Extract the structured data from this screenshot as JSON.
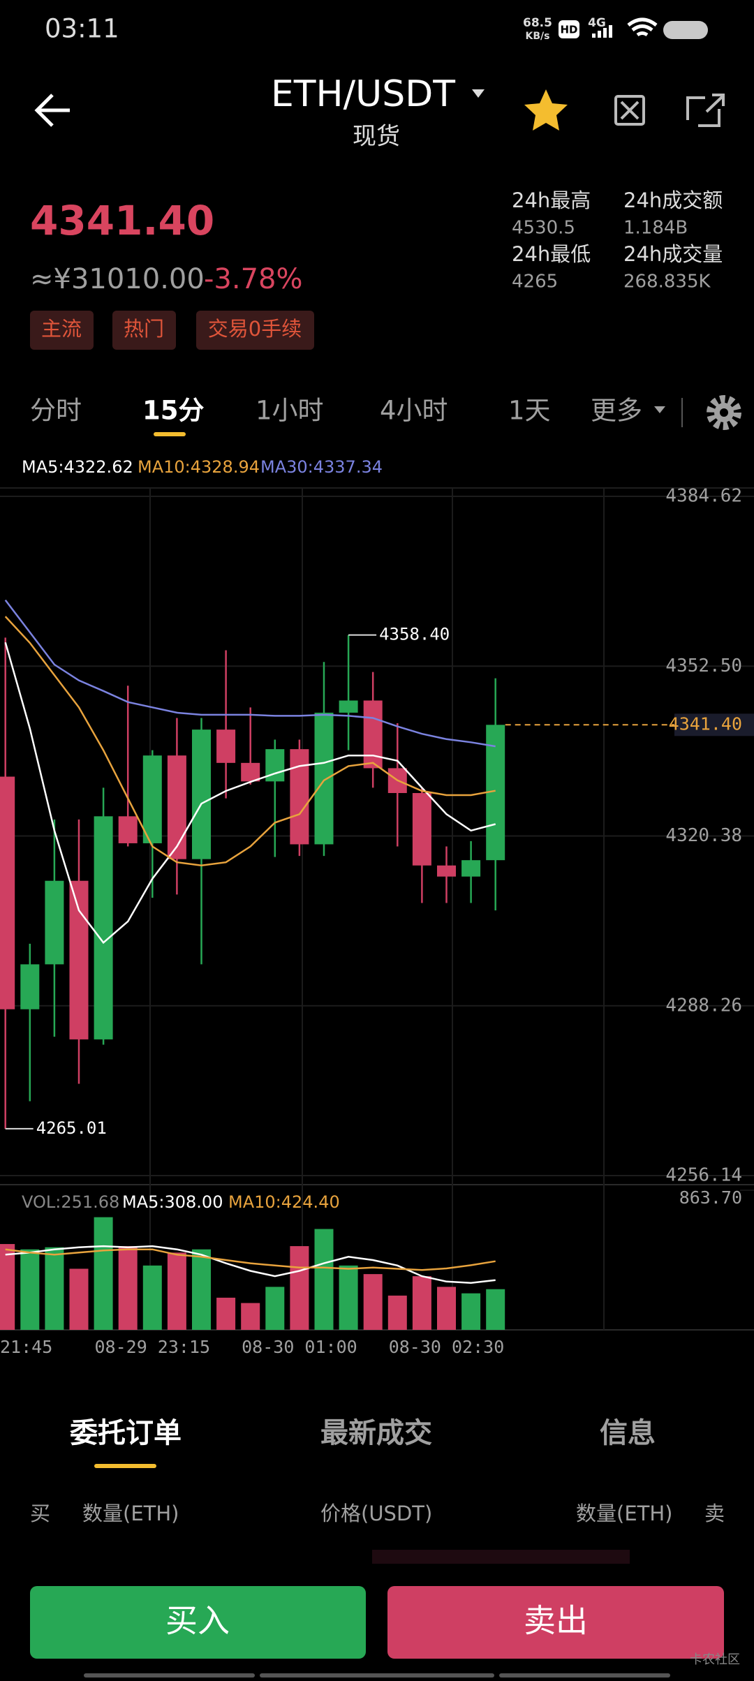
{
  "status_bar": {
    "time": "03:11",
    "speed": "68.5",
    "speed_unit": "KB/s",
    "hd": "HD",
    "network": "4G"
  },
  "header": {
    "pair": "ETH/USDT",
    "market": "现货"
  },
  "ticker": {
    "price": "4341.40",
    "cny": "≈¥31010.00",
    "change": "-3.78%",
    "tags": [
      "主流",
      "热门",
      "交易0手续"
    ],
    "stats": [
      {
        "label": "24h最高",
        "value": "4530.5"
      },
      {
        "label": "24h最低",
        "value": "4265"
      },
      {
        "label": "24h成交额",
        "value": "1.184B"
      },
      {
        "label": "24h成交量",
        "value": "268.835K"
      }
    ]
  },
  "intervals": [
    "分时",
    "15分",
    "1小时",
    "4小时",
    "1天",
    "更多"
  ],
  "chart_data": [
    {
      "type": "candlestick",
      "up_color": "#27a855",
      "down_color": "#cf3f63",
      "open": [
        4331.6,
        4287.6,
        4296.1,
        4311.9,
        4281.9,
        4324.1,
        4319.0,
        4335.6,
        4316.0,
        4340.5,
        4334.2,
        4330.7,
        4336.8,
        4318.8,
        4343.7,
        4346.0,
        4333.2,
        4328.5,
        4314.8,
        4312.7,
        4315.8
      ],
      "high": [
        4357.9,
        4300.0,
        4323.5,
        4323.5,
        4329.5,
        4348.8,
        4336.6,
        4342.7,
        4342.7,
        4355.5,
        4344.7,
        4338.6,
        4338.6,
        4353.3,
        4358.4,
        4351.4,
        4341.7,
        4329.5,
        4318.4,
        4319.4,
        4350.2
      ],
      "low": [
        4265.01,
        4270.2,
        4282.4,
        4273.5,
        4280.9,
        4318.4,
        4308.7,
        4309.3,
        4296.1,
        4327.5,
        4330.1,
        4316.4,
        4316.6,
        4316.6,
        4336.6,
        4329.5,
        4318.4,
        4307.7,
        4307.7,
        4307.7,
        4306.3
      ],
      "close": [
        4287.6,
        4296.1,
        4311.9,
        4281.9,
        4324.1,
        4319.0,
        4335.6,
        4316.0,
        4340.5,
        4334.2,
        4330.7,
        4336.8,
        4318.8,
        4343.7,
        4346.0,
        4333.2,
        4328.5,
        4314.8,
        4312.7,
        4315.8,
        4341.4
      ],
      "series": [
        {
          "name": "MA5:4322.62",
          "color": "#ffffff",
          "values": [
            4357,
            4340.7,
            4321.4,
            4306.3,
            4300.2,
            4304.2,
            4312.3,
            4318.4,
            4326.5,
            4328.9,
            4330.6,
            4332.2,
            4333.6,
            4334.2,
            4335.6,
            4335.6,
            4334.6,
            4329.5,
            4324.5,
            4321.4,
            4322.62
          ]
        },
        {
          "name": "MA10:4328.94",
          "color": "#e8a33d",
          "values": [
            4361.9,
            4356.9,
            4350.8,
            4344.7,
            4336.6,
            4327.5,
            4318.4,
            4315.4,
            4314.8,
            4315.4,
            4318.4,
            4322.9,
            4324.5,
            4330.9,
            4333.6,
            4334.2,
            4330.9,
            4328.9,
            4328.1,
            4328.1,
            4328.94
          ]
        },
        {
          "name": "MA30:4337.34",
          "color": "#7b83e0",
          "values": [
            4365,
            4358.9,
            4352.8,
            4349.8,
            4347.8,
            4345.7,
            4344.7,
            4343.7,
            4343.3,
            4343.3,
            4343.3,
            4343.1,
            4343.1,
            4343.3,
            4343.1,
            4342.7,
            4341.1,
            4339.7,
            4338.7,
            4338.1,
            4337.34
          ]
        }
      ],
      "ylim": [
        4256.14,
        4384.62
      ],
      "yticks": [
        4384.62,
        {
          "value": 4352.5,
          "label": "4352.50"
        },
        4320.38,
        4288.26,
        4256.14
      ],
      "annotations": {
        "high": {
          "value": 4358.4,
          "label": "4358.40"
        },
        "low": {
          "value": 4265.01,
          "label": "4265.01"
        },
        "last": {
          "value": 4341.4,
          "label": "4341.40"
        }
      }
    },
    {
      "type": "bar",
      "categories": [
        "21:45",
        null,
        null,
        null,
        null,
        null,
        "08-29 23:15",
        null,
        null,
        null,
        null,
        null,
        "08-30 01:00",
        null,
        null,
        null,
        null,
        null,
        "08-30 02:30",
        null,
        null
      ],
      "series": [
        {
          "name": "VOL:251.68",
          "values": [
            531,
            498,
            511,
            378,
            697,
            518,
            398,
            478,
            498,
            199,
            166,
            266,
            518,
            624,
            398,
            345,
            212,
            332,
            266,
            226,
            251.68
          ]
        },
        {
          "name": "MA5:308.00",
          "color": "#ffffff",
          "values": [
            465,
            478,
            498,
            511,
            518,
            511,
            518,
            498,
            465,
            412,
            365,
            332,
            365,
            412,
            452,
            432,
            398,
            332,
            299,
            290,
            308
          ]
        },
        {
          "name": "MA10:424.40",
          "color": "#e8a33d",
          "values": [
            498,
            478,
            465,
            478,
            491,
            498,
            498,
            465,
            452,
            432,
            412,
            398,
            385,
            385,
            378,
            385,
            378,
            370,
            380,
            400,
            424.4
          ]
        }
      ],
      "ylim": [
        0,
        863.7
      ],
      "yticks": [
        {
          "value": 863.7,
          "label": "863.70"
        }
      ]
    }
  ],
  "order_book": {
    "tabs": [
      "委托订单",
      "最新成交",
      "信息"
    ],
    "columns": [
      "买",
      "数量(ETH)",
      "价格(USDT)",
      "数量(ETH)",
      "卖"
    ]
  },
  "actions": {
    "buy": "买入",
    "sell": "卖出"
  },
  "watermark": "卡农社区"
}
